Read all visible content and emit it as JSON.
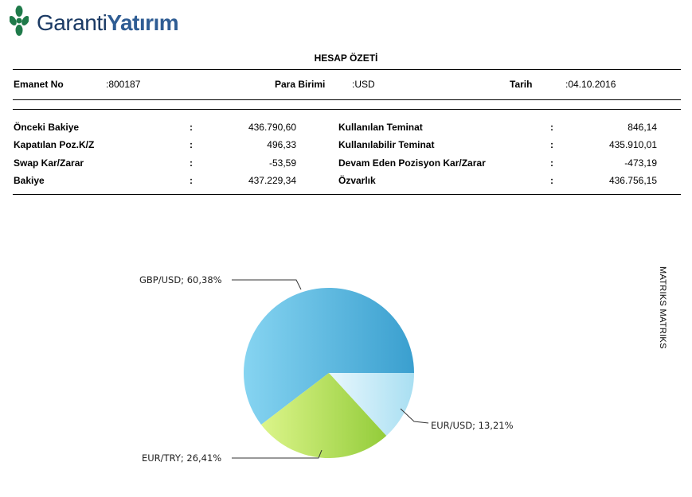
{
  "logo": {
    "word1": "Garanti",
    "word2": "Yatırım"
  },
  "title": "HESAP ÖZETİ",
  "header": {
    "account_label": "Emanet No",
    "account_value": ":800187",
    "currency_label": "Para Birimi",
    "currency_value": ":USD",
    "date_label": "Tarih",
    "date_value": ":04.10.2016"
  },
  "summary_left": [
    {
      "label": "Önceki Bakiye",
      "colon": ":",
      "value": "436.790,60"
    },
    {
      "label": "Kapatılan Poz.K/Z",
      "colon": ":",
      "value": "496,33"
    },
    {
      "label": "Swap Kar/Zarar",
      "colon": ":",
      "value": "-53,59"
    },
    {
      "label": "Bakiye",
      "colon": ":",
      "value": "437.229,34"
    }
  ],
  "summary_right": [
    {
      "label": "Kullanılan Teminat",
      "colon": ":",
      "value": "846,14"
    },
    {
      "label": "Kullanılabilir Teminat",
      "colon": ":",
      "value": "435.910,01"
    },
    {
      "label": "Devam Eden Pozisyon Kar/Zarar",
      "colon": ":",
      "value": "-473,19"
    },
    {
      "label": "Özvarlık",
      "colon": ":",
      "value": "436.756,15"
    }
  ],
  "side_text": "MATRIKS MATRIKS",
  "chart_data": {
    "type": "pie",
    "slices": [
      {
        "label": "GBP/USD; 60,38%",
        "name": "GBP/USD",
        "value": 60.38,
        "color": "#5ab8de"
      },
      {
        "label": "EUR/USD; 13,21%",
        "name": "EUR/USD",
        "value": 13.21,
        "color": "#bfe8f7"
      },
      {
        "label": "EUR/TRY; 26,41%",
        "name": "EUR/TRY",
        "value": 26.41,
        "color": "#b8df5a"
      }
    ]
  },
  "colors": {
    "logo_dark": "#1b3a64",
    "logo_green": "#1f7a4a"
  }
}
